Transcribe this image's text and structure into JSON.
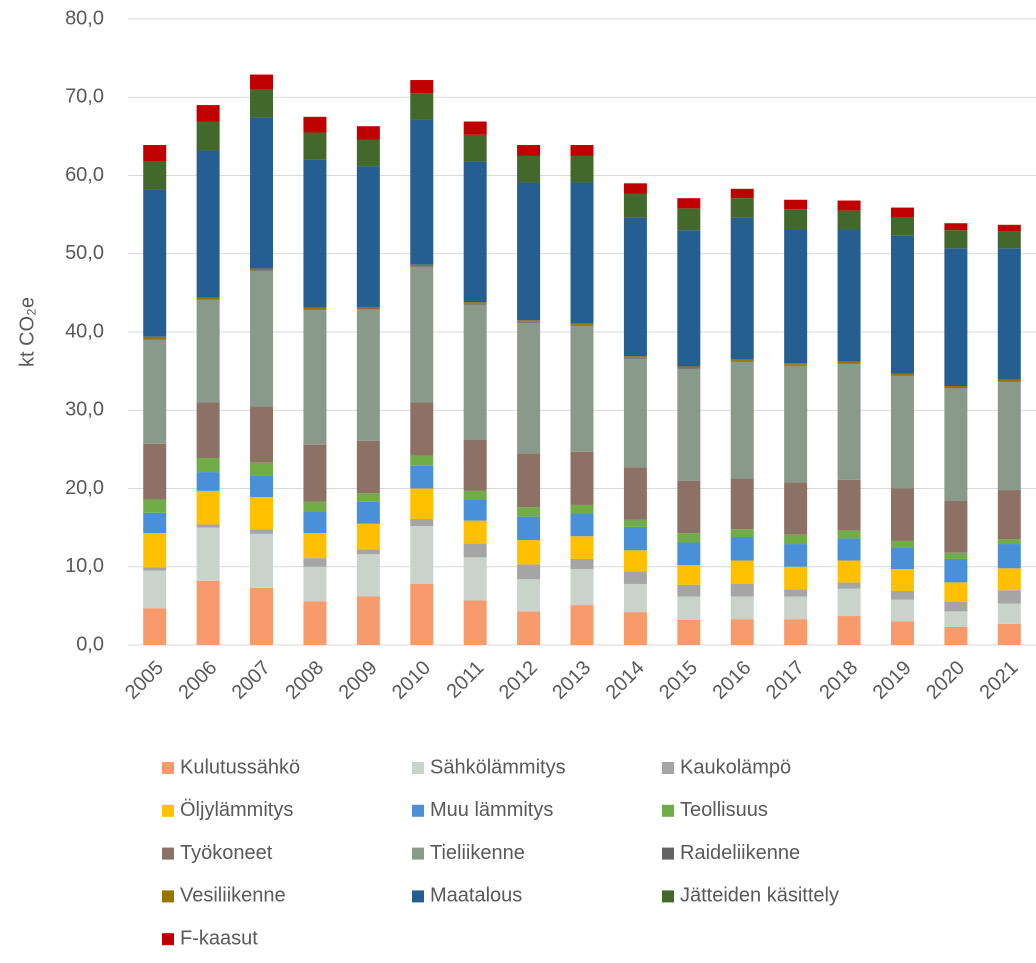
{
  "chart_data": {
    "type": "stacked-bar",
    "y_label": "kt CO₂e",
    "categories": [
      "2005",
      "2006",
      "2007",
      "2008",
      "2009",
      "2010",
      "2011",
      "2012",
      "2013",
      "2014",
      "2015",
      "2016",
      "2017",
      "2018",
      "2019",
      "2020",
      "2021"
    ],
    "ylim": [
      0,
      80
    ],
    "yticks": [
      {
        "value": 0,
        "label": "0,0"
      },
      {
        "value": 10,
        "label": "10,0"
      },
      {
        "value": 20,
        "label": "20,0"
      },
      {
        "value": 30,
        "label": "30,0"
      },
      {
        "value": 40,
        "label": "40,0"
      },
      {
        "value": 50,
        "label": "50,0"
      },
      {
        "value": 60,
        "label": "60,0"
      },
      {
        "value": 70,
        "label": "70,0"
      },
      {
        "value": 80,
        "label": "80,0"
      }
    ],
    "grid": true,
    "series": [
      {
        "name": "Kulutussähkö",
        "color": "#f79a6c",
        "values": [
          4.7,
          8.2,
          7.3,
          5.6,
          6.2,
          7.8,
          5.7,
          4.3,
          5.1,
          4.2,
          3.2,
          3.3,
          3.3,
          3.7,
          3.0,
          2.3,
          2.7
        ]
      },
      {
        "name": "Sähkölämmitys",
        "color": "#c9d3cc",
        "values": [
          4.8,
          6.8,
          6.9,
          4.4,
          5.4,
          7.4,
          5.5,
          4.1,
          4.6,
          3.6,
          3.0,
          2.9,
          2.9,
          3.5,
          2.8,
          2.0,
          2.6
        ]
      },
      {
        "name": "Kaukolämpö",
        "color": "#a5a5a5",
        "values": [
          0.4,
          0.4,
          0.6,
          1.1,
          0.6,
          0.9,
          1.8,
          1.9,
          1.3,
          1.6,
          1.5,
          1.6,
          0.9,
          0.8,
          1.1,
          1.2,
          1.7
        ]
      },
      {
        "name": "Öljylämmitys",
        "color": "#ffc000",
        "values": [
          4.4,
          4.3,
          4.1,
          3.2,
          3.3,
          3.9,
          2.9,
          3.1,
          2.9,
          2.7,
          2.5,
          3.0,
          2.9,
          2.8,
          2.8,
          2.5,
          2.8
        ]
      },
      {
        "name": "Muu lämmitys",
        "color": "#4a90d9",
        "values": [
          2.6,
          2.4,
          2.8,
          2.7,
          2.8,
          2.9,
          2.7,
          3.0,
          2.9,
          3.0,
          2.9,
          3.0,
          2.9,
          2.8,
          2.7,
          3.0,
          3.1
        ]
      },
      {
        "name": "Teollisuus",
        "color": "#70ad47",
        "values": [
          1.7,
          1.8,
          1.6,
          1.3,
          1.1,
          1.3,
          1.1,
          1.2,
          1.1,
          0.9,
          1.2,
          1.0,
          1.2,
          1.0,
          0.9,
          0.8,
          0.6
        ]
      },
      {
        "name": "Työkoneet",
        "color": "#8c7164",
        "values": [
          7.1,
          7.1,
          7.2,
          7.3,
          6.7,
          6.8,
          6.5,
          6.9,
          6.8,
          6.7,
          6.7,
          6.5,
          6.7,
          6.5,
          6.7,
          6.6,
          6.3
        ]
      },
      {
        "name": "Tieliikenne",
        "color": "#8a9a8a",
        "values": [
          13.3,
          13.1,
          17.3,
          17.2,
          16.8,
          17.3,
          17.3,
          16.7,
          16.1,
          13.9,
          14.3,
          14.9,
          14.9,
          14.8,
          14.4,
          14.4,
          13.8
        ]
      },
      {
        "name": "Raideliikenne",
        "color": "#636363",
        "values": [
          0.1,
          0.1,
          0.1,
          0.1,
          0.1,
          0.1,
          0.1,
          0.1,
          0.1,
          0.1,
          0.1,
          0.1,
          0.1,
          0.1,
          0.1,
          0.1,
          0.1
        ]
      },
      {
        "name": "Vesiliikenne",
        "color": "#997300",
        "values": [
          0.3,
          0.2,
          0.2,
          0.2,
          0.2,
          0.2,
          0.2,
          0.2,
          0.2,
          0.2,
          0.2,
          0.2,
          0.2,
          0.2,
          0.2,
          0.2,
          0.2
        ]
      },
      {
        "name": "Maatalous",
        "color": "#255e91",
        "values": [
          18.8,
          18.8,
          19.3,
          18.9,
          18.0,
          18.5,
          18.0,
          17.6,
          18.0,
          17.7,
          17.4,
          18.1,
          17.1,
          16.9,
          17.6,
          17.6,
          16.8
        ]
      },
      {
        "name": "Jätteiden käsittely",
        "color": "#43682b",
        "values": [
          3.6,
          3.7,
          3.6,
          3.5,
          3.4,
          3.4,
          3.4,
          3.4,
          3.4,
          3.1,
          2.8,
          2.5,
          2.6,
          2.4,
          2.4,
          2.3,
          2.2
        ]
      },
      {
        "name": "F-kaasut",
        "color": "#c00000",
        "values": [
          2.1,
          2.1,
          1.9,
          2.0,
          1.7,
          1.7,
          1.7,
          1.4,
          1.4,
          1.3,
          1.3,
          1.2,
          1.2,
          1.3,
          1.2,
          0.9,
          0.8
        ]
      }
    ]
  }
}
